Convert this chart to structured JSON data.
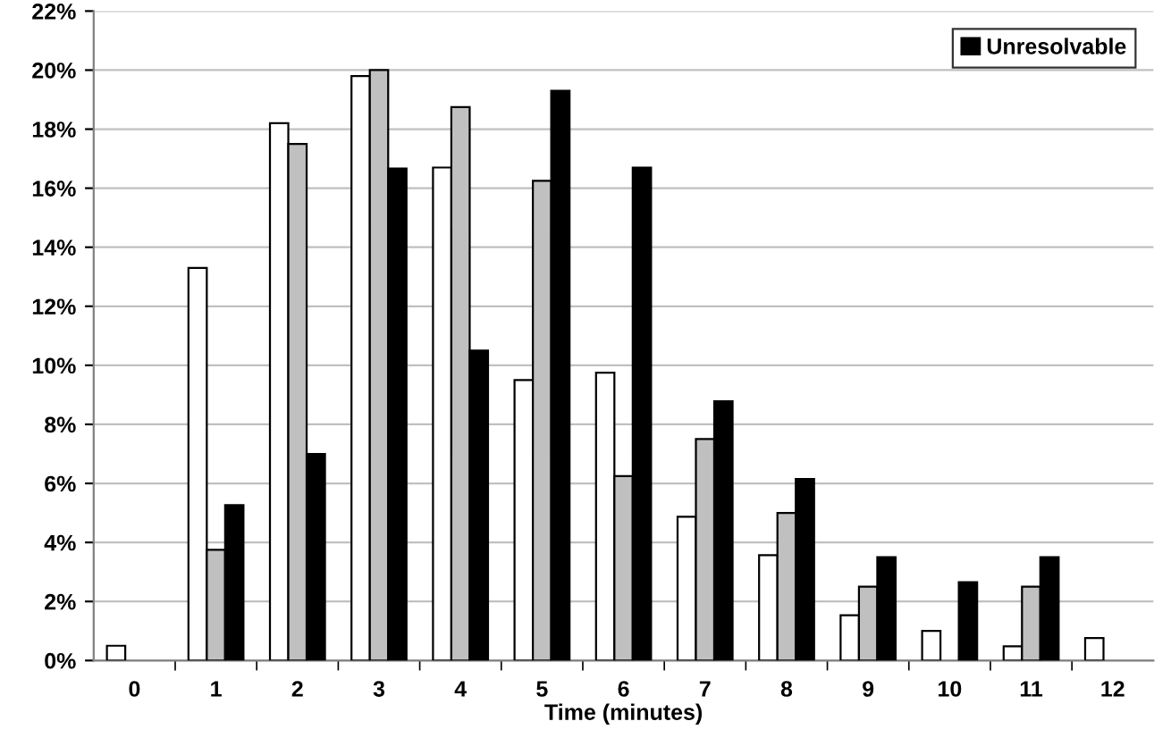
{
  "chart_data": {
    "type": "bar",
    "xlabel": "Time (minutes)",
    "categories": [
      "0",
      "1",
      "2",
      "3",
      "4",
      "5",
      "6",
      "7",
      "8",
      "9",
      "10",
      "11",
      "12"
    ],
    "series": [
      {
        "color": "#ffffff",
        "values": [
          0.5,
          13.3,
          18.2,
          19.8,
          16.7,
          9.5,
          9.75,
          4.87,
          3.57,
          1.53,
          1.0,
          0.48,
          0.76
        ]
      },
      {
        "color": "#c0c0c0",
        "values": [
          null,
          3.75,
          17.5,
          20.0,
          18.75,
          16.25,
          6.25,
          7.5,
          5.0,
          2.5,
          null,
          2.5,
          null
        ]
      },
      {
        "name": "Unresolvable",
        "color": "#000000",
        "values": [
          null,
          5.26,
          7.0,
          16.67,
          10.5,
          19.3,
          16.7,
          8.78,
          6.15,
          3.5,
          2.65,
          3.5,
          null
        ]
      }
    ],
    "ylim": [
      0,
      22
    ],
    "yticks": [
      {
        "value": 0,
        "label": "0%"
      },
      {
        "value": 2,
        "label": "2%"
      },
      {
        "value": 4,
        "label": "4%"
      },
      {
        "value": 6,
        "label": "6%"
      },
      {
        "value": 8,
        "label": "8%"
      },
      {
        "value": 10,
        "label": "10%"
      },
      {
        "value": 12,
        "label": "12%"
      },
      {
        "value": 14,
        "label": "14%"
      },
      {
        "value": 16,
        "label": "16%"
      },
      {
        "value": 18,
        "label": "18%"
      },
      {
        "value": 20,
        "label": "20%"
      },
      {
        "value": 22,
        "label": "22%"
      }
    ],
    "grid": "y",
    "legend": "top right"
  }
}
